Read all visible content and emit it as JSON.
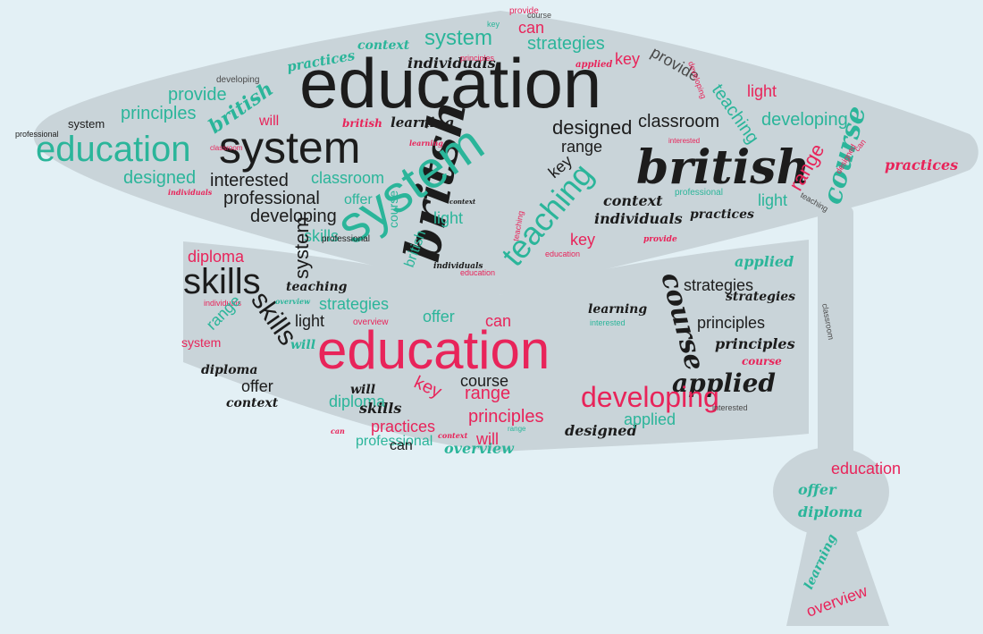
{
  "colors": {
    "background": "#e3f0f5",
    "shape": "#c9d4d9",
    "black": "#1c1c1c",
    "teal": "#2bb59a",
    "pink": "#e8245a",
    "gray": "#4a4a4a"
  },
  "words": [
    {
      "text": "education"
    },
    {
      "text": "system"
    },
    {
      "text": "britsh"
    },
    {
      "text": "system"
    },
    {
      "text": "education"
    },
    {
      "text": "british"
    },
    {
      "text": "teaching"
    },
    {
      "text": "course"
    },
    {
      "text": "individuals"
    },
    {
      "text": "context"
    },
    {
      "text": "system"
    },
    {
      "text": "strategies"
    },
    {
      "text": "can"
    },
    {
      "text": "key"
    },
    {
      "text": "practices"
    },
    {
      "text": "applied"
    },
    {
      "text": "provide"
    },
    {
      "text": "developing"
    },
    {
      "text": "provide"
    },
    {
      "text": "british"
    },
    {
      "text": "principles"
    },
    {
      "text": "will"
    },
    {
      "text": "system"
    },
    {
      "text": "professional"
    },
    {
      "text": "british"
    },
    {
      "text": "learning"
    },
    {
      "text": "designed"
    },
    {
      "text": "classroom"
    },
    {
      "text": "range"
    },
    {
      "text": "light"
    },
    {
      "text": "teaching"
    },
    {
      "text": "developing"
    },
    {
      "text": "designed"
    },
    {
      "text": "interested"
    },
    {
      "text": "classroom"
    },
    {
      "text": "professional"
    },
    {
      "text": "offer"
    },
    {
      "text": "developing"
    },
    {
      "text": "skills"
    },
    {
      "text": "light"
    },
    {
      "text": "key"
    },
    {
      "text": "range"
    },
    {
      "text": "context"
    },
    {
      "text": "individuals"
    },
    {
      "text": "practices"
    },
    {
      "text": "light"
    },
    {
      "text": "practices"
    },
    {
      "text": "designed"
    },
    {
      "text": "individuals"
    },
    {
      "text": "classroom"
    },
    {
      "text": "learning"
    },
    {
      "text": "interested"
    },
    {
      "text": "teaching"
    },
    {
      "text": "professional"
    },
    {
      "text": "education"
    },
    {
      "text": "course"
    },
    {
      "text": "british"
    },
    {
      "text": "key"
    },
    {
      "text": "provide"
    },
    {
      "text": "diploma"
    },
    {
      "text": "skills"
    },
    {
      "text": "skills"
    },
    {
      "text": "teaching"
    },
    {
      "text": "overview"
    },
    {
      "text": "individuals"
    },
    {
      "text": "strategies"
    },
    {
      "text": "strategies"
    },
    {
      "text": "light"
    },
    {
      "text": "principles"
    },
    {
      "text": "offer"
    },
    {
      "text": "range"
    },
    {
      "text": "system"
    },
    {
      "text": "will"
    },
    {
      "text": "diploma"
    },
    {
      "text": "offer"
    },
    {
      "text": "context"
    },
    {
      "text": "education"
    },
    {
      "text": "can"
    },
    {
      "text": "learning"
    },
    {
      "text": "interested"
    },
    {
      "text": "course"
    },
    {
      "text": "strategies"
    },
    {
      "text": "overview"
    },
    {
      "text": "principles"
    },
    {
      "text": "applied"
    },
    {
      "text": "course"
    },
    {
      "text": "applied"
    },
    {
      "text": "course"
    },
    {
      "text": "will"
    },
    {
      "text": "diploma"
    },
    {
      "text": "key"
    },
    {
      "text": "range"
    },
    {
      "text": "developing"
    },
    {
      "text": "skills"
    },
    {
      "text": "practices"
    },
    {
      "text": "principles"
    },
    {
      "text": "professional"
    },
    {
      "text": "can"
    },
    {
      "text": "can"
    },
    {
      "text": "context"
    },
    {
      "text": "overview"
    },
    {
      "text": "will"
    },
    {
      "text": "designed"
    },
    {
      "text": "applied"
    },
    {
      "text": "interested"
    },
    {
      "text": "range"
    },
    {
      "text": "classroom"
    },
    {
      "text": "education"
    },
    {
      "text": "offer"
    },
    {
      "text": "diploma"
    },
    {
      "text": "learning"
    },
    {
      "text": "overview"
    },
    {
      "text": "teaching"
    },
    {
      "text": "developing"
    },
    {
      "text": "professional"
    },
    {
      "text": "system"
    },
    {
      "text": "education"
    },
    {
      "text": "principles"
    },
    {
      "text": "provide"
    },
    {
      "text": "course"
    },
    {
      "text": "key"
    },
    {
      "text": "individuals"
    },
    {
      "text": "context"
    },
    {
      "text": "can"
    },
    {
      "text": "learning"
    }
  ]
}
